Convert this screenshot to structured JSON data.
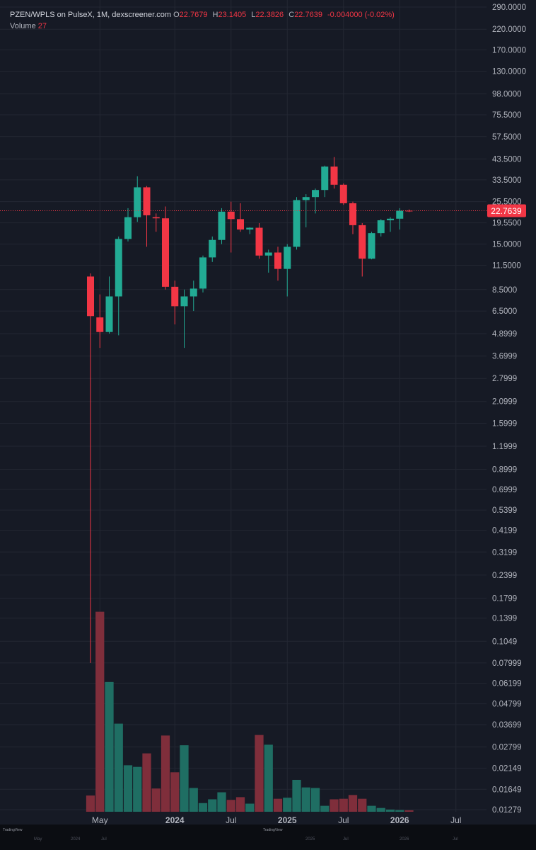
{
  "legend": {
    "symbol": "PZEN/WPLS on PulseX, 1M, dexscreener.com",
    "o_label": "O",
    "open": "22.7679",
    "h_label": "H",
    "high": "23.1405",
    "l_label": "L",
    "low": "22.3826",
    "c_label": "C",
    "close": "22.7639",
    "change": "-0.004000 (-0.02%)",
    "volume_label": "Volume",
    "volume": "27"
  },
  "price_label": "22.7639",
  "colors": {
    "background": "#161a25",
    "grid": "#232733",
    "up": "#22ab94",
    "down": "#f23645",
    "up_volume": "#1f6e63",
    "down_volume": "#7f2e3b",
    "text": "#b2b5be",
    "price_line": "#f23645"
  },
  "footer": {
    "brand": "TradingView",
    "brand2": "TradingView",
    "mini_ticks": [
      "May",
      "2024",
      "Jul",
      "2025",
      "Jul",
      "2026",
      "Jul"
    ]
  },
  "chart_data": {
    "type": "candlestick",
    "interval": "1M",
    "y_scale": "log",
    "y_ticks": [
      290.0,
      220.0,
      170.0,
      130.0,
      98.0,
      75.5,
      57.5,
      43.5,
      33.5,
      25.5,
      19.55,
      15.0,
      11.5,
      8.5,
      6.5,
      4.8999,
      3.6999,
      2.7999,
      2.0999,
      1.5999,
      1.1999,
      0.8999,
      0.6999,
      0.5399,
      0.4199,
      0.3199,
      0.2399,
      0.1799,
      0.1399,
      0.1049,
      0.07999,
      0.06199,
      0.04799,
      0.03699,
      0.02799,
      0.02149,
      0.01649,
      0.01279
    ],
    "y_tick_labels": [
      "290.0000",
      "220.0000",
      "170.0000",
      "130.0000",
      "98.0000",
      "75.5000",
      "57.5000",
      "43.5000",
      "33.5000",
      "25.5000",
      "19.5500",
      "15.0000",
      "11.5000",
      "8.5000",
      "6.5000",
      "4.8999",
      "3.6999",
      "2.7999",
      "2.0999",
      "1.5999",
      "1.1999",
      "0.8999",
      "0.6999",
      "0.5399",
      "0.4199",
      "0.3199",
      "0.2399",
      "0.1799",
      "0.1399",
      "0.1049",
      "0.07999",
      "0.06199",
      "0.04799",
      "0.03699",
      "0.02799",
      "0.02149",
      "0.01649",
      "0.01279"
    ],
    "x_ticks": [
      {
        "label": "May",
        "date": "2023-05"
      },
      {
        "label": "2024",
        "date": "2024-01"
      },
      {
        "label": "Jul",
        "date": "2024-07"
      },
      {
        "label": "2025",
        "date": "2025-01"
      },
      {
        "label": "Jul",
        "date": "2025-07"
      },
      {
        "label": "2026",
        "date": "2026-01"
      },
      {
        "label": "Jul",
        "date": "2026-07"
      }
    ],
    "candles": [
      {
        "date": "2023-04",
        "open": 10.0,
        "high": 10.4,
        "low": 0.08,
        "close": 6.1
      },
      {
        "date": "2023-05",
        "open": 6.0,
        "high": 8.0,
        "low": 4.1,
        "close": 5.0
      },
      {
        "date": "2023-06",
        "open": 5.0,
        "high": 10.0,
        "low": 4.9,
        "close": 7.8
      },
      {
        "date": "2023-07",
        "open": 7.8,
        "high": 16.5,
        "low": 4.8,
        "close": 16.0
      },
      {
        "date": "2023-08",
        "open": 16.0,
        "high": 23.5,
        "low": 15.5,
        "close": 21.0
      },
      {
        "date": "2023-09",
        "open": 21.0,
        "high": 35.0,
        "low": 19.8,
        "close": 30.5
      },
      {
        "date": "2023-10",
        "open": 30.5,
        "high": 31.0,
        "low": 14.5,
        "close": 21.5
      },
      {
        "date": "2023-11",
        "open": 21.0,
        "high": 22.0,
        "low": 17.5,
        "close": 20.7
      },
      {
        "date": "2023-12",
        "open": 20.7,
        "high": 24.0,
        "low": 8.5,
        "close": 8.8
      },
      {
        "date": "2024-01",
        "open": 8.8,
        "high": 9.5,
        "low": 5.5,
        "close": 6.9
      },
      {
        "date": "2024-02",
        "open": 6.9,
        "high": 8.5,
        "low": 4.1,
        "close": 7.8
      },
      {
        "date": "2024-03",
        "open": 7.8,
        "high": 9.5,
        "low": 6.5,
        "close": 8.6
      },
      {
        "date": "2024-04",
        "open": 8.6,
        "high": 13.0,
        "low": 8.2,
        "close": 12.7
      },
      {
        "date": "2024-05",
        "open": 12.7,
        "high": 16.5,
        "low": 12.0,
        "close": 15.8
      },
      {
        "date": "2024-06",
        "open": 15.8,
        "high": 23.5,
        "low": 15.0,
        "close": 22.5
      },
      {
        "date": "2024-07",
        "open": 22.5,
        "high": 25.5,
        "low": 13.5,
        "close": 20.5
      },
      {
        "date": "2024-08",
        "open": 20.5,
        "high": 25.0,
        "low": 17.5,
        "close": 18.0
      },
      {
        "date": "2024-09",
        "open": 18.0,
        "high": 18.5,
        "low": 17.0,
        "close": 18.4
      },
      {
        "date": "2024-10",
        "open": 18.4,
        "high": 19.5,
        "low": 12.5,
        "close": 13.0
      },
      {
        "date": "2024-11",
        "open": 13.0,
        "high": 14.0,
        "low": 10.5,
        "close": 13.5
      },
      {
        "date": "2024-12",
        "open": 13.5,
        "high": 14.5,
        "low": 9.5,
        "close": 11.0
      },
      {
        "date": "2025-01",
        "open": 11.0,
        "high": 15.0,
        "low": 7.8,
        "close": 14.5
      },
      {
        "date": "2025-02",
        "open": 14.5,
        "high": 27.0,
        "low": 14.0,
        "close": 26.0
      },
      {
        "date": "2025-03",
        "open": 26.0,
        "high": 28.0,
        "low": 18.5,
        "close": 27.0
      },
      {
        "date": "2025-04",
        "open": 27.0,
        "high": 30.0,
        "low": 22.0,
        "close": 29.5
      },
      {
        "date": "2025-05",
        "open": 29.5,
        "high": 40.0,
        "low": 27.0,
        "close": 39.5
      },
      {
        "date": "2025-06",
        "open": 39.5,
        "high": 44.5,
        "low": 30.0,
        "close": 31.5
      },
      {
        "date": "2025-07",
        "open": 31.5,
        "high": 32.0,
        "low": 24.5,
        "close": 25.0
      },
      {
        "date": "2025-08",
        "open": 25.0,
        "high": 25.5,
        "low": 17.0,
        "close": 19.0
      },
      {
        "date": "2025-09",
        "open": 19.0,
        "high": 19.5,
        "low": 10.0,
        "close": 12.5
      },
      {
        "date": "2025-10",
        "open": 12.5,
        "high": 17.5,
        "low": 12.4,
        "close": 17.2
      },
      {
        "date": "2025-11",
        "open": 17.2,
        "high": 20.5,
        "low": 16.5,
        "close": 20.2
      },
      {
        "date": "2025-12",
        "open": 20.2,
        "high": 21.0,
        "low": 17.5,
        "close": 20.6
      },
      {
        "date": "2026-01",
        "open": 20.6,
        "high": 23.5,
        "low": 18.0,
        "close": 22.77
      },
      {
        "date": "2026-02",
        "open": 22.7679,
        "high": 23.1405,
        "low": 22.3826,
        "close": 22.7639
      }
    ],
    "volume": [
      300,
      3700,
      2400,
      1630,
      860,
      830,
      1080,
      430,
      1410,
      730,
      1230,
      440,
      160,
      230,
      360,
      220,
      270,
      150,
      1420,
      1240,
      240,
      260,
      590,
      450,
      440,
      110,
      230,
      240,
      310,
      240,
      110,
      70,
      40,
      30,
      27
    ],
    "volume_max": 3800,
    "last_price": 22.7639
  }
}
